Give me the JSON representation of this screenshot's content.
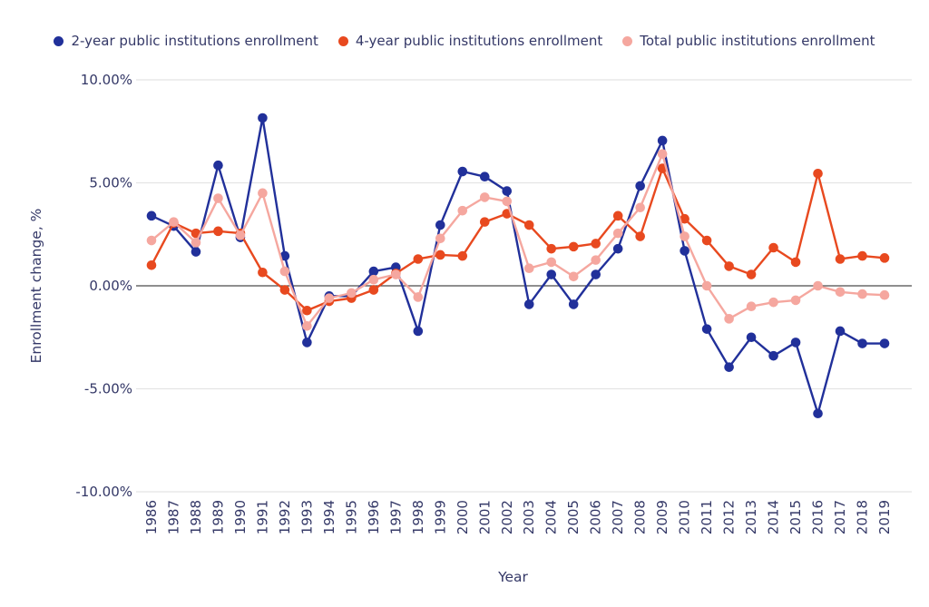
{
  "colors": {
    "text": "#343867",
    "grid": "#e4e4e4",
    "zero_line": "#4a4a4a",
    "background": "#ffffff"
  },
  "chart_data": {
    "type": "line",
    "title": "",
    "xlabel": "Year",
    "ylabel": "Enrollment change, %",
    "ylim": [
      -10,
      10
    ],
    "yticks": [
      10,
      5,
      0,
      -5,
      -10
    ],
    "ytick_labels": [
      "10.00%",
      "5.00%",
      "0.00%",
      "-5.00%",
      "-10.00%"
    ],
    "grid": true,
    "legend_position": "top",
    "marker": "circle",
    "x": [
      1986,
      1987,
      1988,
      1989,
      1990,
      1991,
      1992,
      1993,
      1994,
      1995,
      1996,
      1997,
      1998,
      1999,
      2000,
      2001,
      2002,
      2003,
      2004,
      2005,
      2006,
      2007,
      2008,
      2009,
      2010,
      2011,
      2012,
      2013,
      2014,
      2015,
      2016,
      2017,
      2018,
      2019
    ],
    "series": [
      {
        "name": "2-year public institutions enrollment",
        "color": "#21309a",
        "values": [
          3.4,
          2.9,
          1.65,
          5.85,
          2.35,
          8.15,
          1.45,
          -2.75,
          -0.5,
          -0.5,
          0.7,
          0.9,
          -2.2,
          2.95,
          5.55,
          5.3,
          4.6,
          -0.9,
          0.55,
          -0.9,
          0.55,
          1.8,
          4.85,
          7.05,
          1.7,
          -2.1,
          -3.95,
          -2.5,
          -3.4,
          -2.75,
          -6.2,
          -2.2,
          -2.8,
          -2.8
        ]
      },
      {
        "name": "4-year public institutions enrollment",
        "color": "#e8491f",
        "values": [
          1.0,
          3.05,
          2.55,
          2.65,
          2.55,
          0.65,
          -0.2,
          -1.2,
          -0.75,
          -0.6,
          -0.2,
          0.6,
          1.3,
          1.5,
          1.45,
          3.1,
          3.5,
          2.95,
          1.8,
          1.9,
          2.05,
          3.4,
          2.4,
          5.7,
          3.25,
          2.2,
          0.95,
          0.55,
          1.85,
          1.15,
          5.45,
          1.3,
          1.45,
          1.35
        ]
      },
      {
        "name": "Total public institutions enrollment",
        "color": "#f5a79f",
        "values": [
          2.2,
          3.1,
          2.1,
          4.25,
          2.45,
          4.5,
          0.7,
          -1.95,
          -0.6,
          -0.35,
          0.3,
          0.55,
          -0.55,
          2.3,
          3.65,
          4.3,
          4.1,
          0.85,
          1.15,
          0.45,
          1.25,
          2.55,
          3.8,
          6.4,
          2.4,
          0.0,
          -1.6,
          -1.0,
          -0.8,
          -0.7,
          0.0,
          -0.3,
          -0.4,
          -0.45
        ]
      }
    ]
  }
}
